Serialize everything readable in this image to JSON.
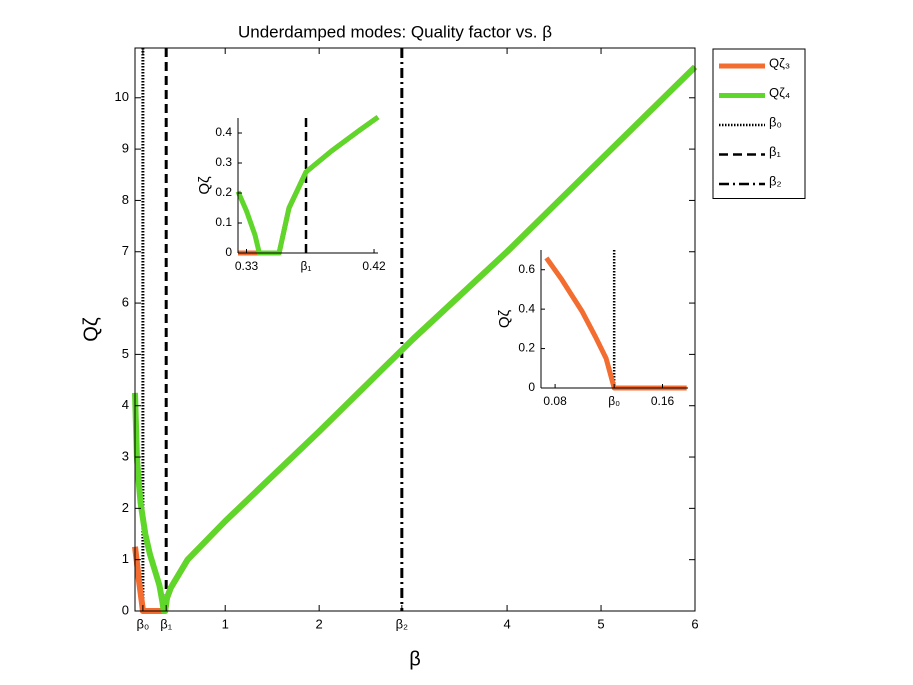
{
  "chart_data": [
    {
      "type": "line",
      "title": "Underdamped modes: Quality factor vs. β",
      "xlabel": "β",
      "ylabel": "Qζ",
      "xlim": [
        0.04,
        6
      ],
      "ylim": [
        0,
        10.97
      ],
      "xticks": [
        {
          "value": 0.124,
          "label": "β₀"
        },
        {
          "value": 0.372,
          "label": "β₁"
        },
        1,
        2,
        {
          "value": 2.88,
          "label": "β₂"
        },
        4,
        5,
        6
      ],
      "yticks": [
        0,
        1,
        2,
        3,
        4,
        5,
        6,
        7,
        8,
        9,
        10
      ],
      "box": true,
      "legend": "outside-right",
      "series": [
        {
          "name": "Qζ₃",
          "color": "#f36c30",
          "x": [
            0.04,
            0.06,
            0.08,
            0.1,
            0.115,
            0.124,
            0.2,
            0.3,
            0.36,
            0.38,
            0.42,
            0.6,
            1,
            2,
            3,
            4,
            5,
            6
          ],
          "values": [
            1.25,
            0.95,
            0.62,
            0.35,
            0.15,
            0,
            0,
            0,
            0,
            0.25,
            0.45,
            1.0,
            1.75,
            3.5,
            5.3,
            7.0,
            8.8,
            10.6
          ]
        },
        {
          "name": "Qζ₄",
          "color": "#5fd62a",
          "x": [
            0.04,
            0.06,
            0.08,
            0.1,
            0.15,
            0.2,
            0.3,
            0.33,
            0.345,
            0.36,
            0.38,
            0.42,
            0.6,
            1,
            2,
            3,
            4,
            5,
            6
          ],
          "values": [
            4.25,
            3.0,
            2.5,
            2.1,
            1.5,
            1.1,
            0.5,
            0.2,
            0,
            0,
            0.25,
            0.45,
            1.0,
            1.75,
            3.5,
            5.3,
            7.0,
            8.8,
            10.6
          ]
        }
      ],
      "vlines": [
        {
          "name": "β₀",
          "x": 0.124,
          "dash": "dotted"
        },
        {
          "name": "β₁",
          "x": 0.372,
          "dash": "dashed"
        },
        {
          "name": "β₂",
          "x": 2.88,
          "dash": "dashdot"
        }
      ]
    },
    {
      "type": "line",
      "ylabel": "Qζ",
      "xlim": [
        0.324,
        0.4228
      ],
      "ylim": [
        0,
        0.45
      ],
      "xticks": [
        0.33,
        {
          "value": 0.372,
          "label": "β₁"
        },
        0.42
      ],
      "yticks": [
        0,
        0.1,
        0.2,
        0.3,
        0.4
      ],
      "box": false,
      "series": [
        {
          "color": "#f36c30",
          "x": [
            0.324,
            0.34,
            0.353,
            0.36,
            0.372,
            0.39,
            0.41,
            0.4228
          ],
          "values": [
            0,
            0,
            0,
            0.15,
            0.27,
            0.34,
            0.41,
            0.453
          ]
        },
        {
          "color": "#5fd62a",
          "x": [
            0.324,
            0.33,
            0.336,
            0.339,
            0.353,
            0.36,
            0.372,
            0.39,
            0.41,
            0.4228
          ],
          "values": [
            0.205,
            0.14,
            0.06,
            0,
            0,
            0.15,
            0.27,
            0.34,
            0.41,
            0.453
          ]
        }
      ],
      "vlines": [
        {
          "x": 0.372,
          "dash": "dashed"
        }
      ]
    },
    {
      "type": "line",
      "ylabel": "Qζ",
      "xlim": [
        0.0695,
        0.179
      ],
      "ylim": [
        0,
        0.7
      ],
      "xticks": [
        0.08,
        {
          "value": 0.124,
          "label": "β₀"
        },
        0.16
      ],
      "yticks": [
        0,
        0.2,
        0.4,
        0.6
      ],
      "box": false,
      "series": [
        {
          "color": "#f36c30",
          "x": [
            0.0735,
            0.085,
            0.1,
            0.11,
            0.118,
            0.124,
            0.178
          ],
          "values": [
            0.66,
            0.55,
            0.39,
            0.26,
            0.15,
            0,
            0
          ]
        }
      ],
      "vlines": [
        {
          "x": 0.124,
          "dash": "dotted"
        }
      ]
    }
  ]
}
